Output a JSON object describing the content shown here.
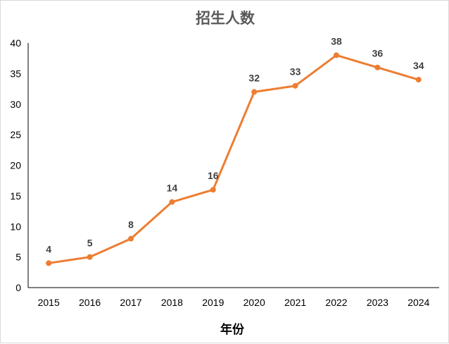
{
  "chart_data": {
    "type": "line",
    "title": "招生人数",
    "xlabel": "年份",
    "ylabel": "",
    "categories": [
      "2015",
      "2016",
      "2017",
      "2018",
      "2019",
      "2020",
      "2021",
      "2022",
      "2023",
      "2024"
    ],
    "series": [
      {
        "values": [
          4,
          5,
          8,
          14,
          16,
          32,
          33,
          38,
          36,
          34
        ],
        "color": "#ED7D31"
      }
    ],
    "ylim": [
      0,
      40
    ],
    "yticks": [
      0,
      5,
      10,
      15,
      20,
      25,
      30,
      35,
      40
    ],
    "data_labels": true,
    "grid": false,
    "legend": "none"
  }
}
